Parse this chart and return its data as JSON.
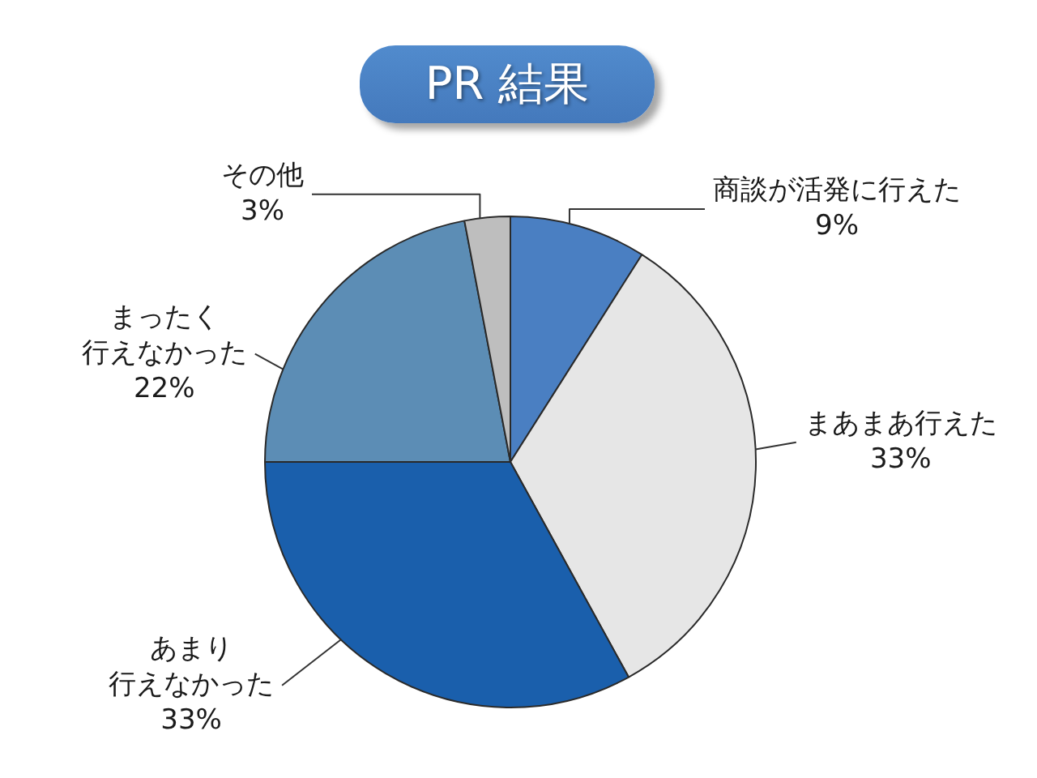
{
  "chart_data": {
    "type": "pie",
    "title": "PR 結果",
    "categories": [
      "商談が活発に行えた",
      "まあまあ行えた",
      "あまり行えなかった",
      "まったく行えなかった",
      "その他"
    ],
    "values": [
      9,
      33,
      33,
      22,
      3
    ],
    "colors": [
      "#4a7fc2",
      "#e6e6e6",
      "#1a5fac",
      "#5c8db5",
      "#bebebe"
    ],
    "value_labels": [
      "9%",
      "33%",
      "33%",
      "22%",
      "3%"
    ]
  }
}
